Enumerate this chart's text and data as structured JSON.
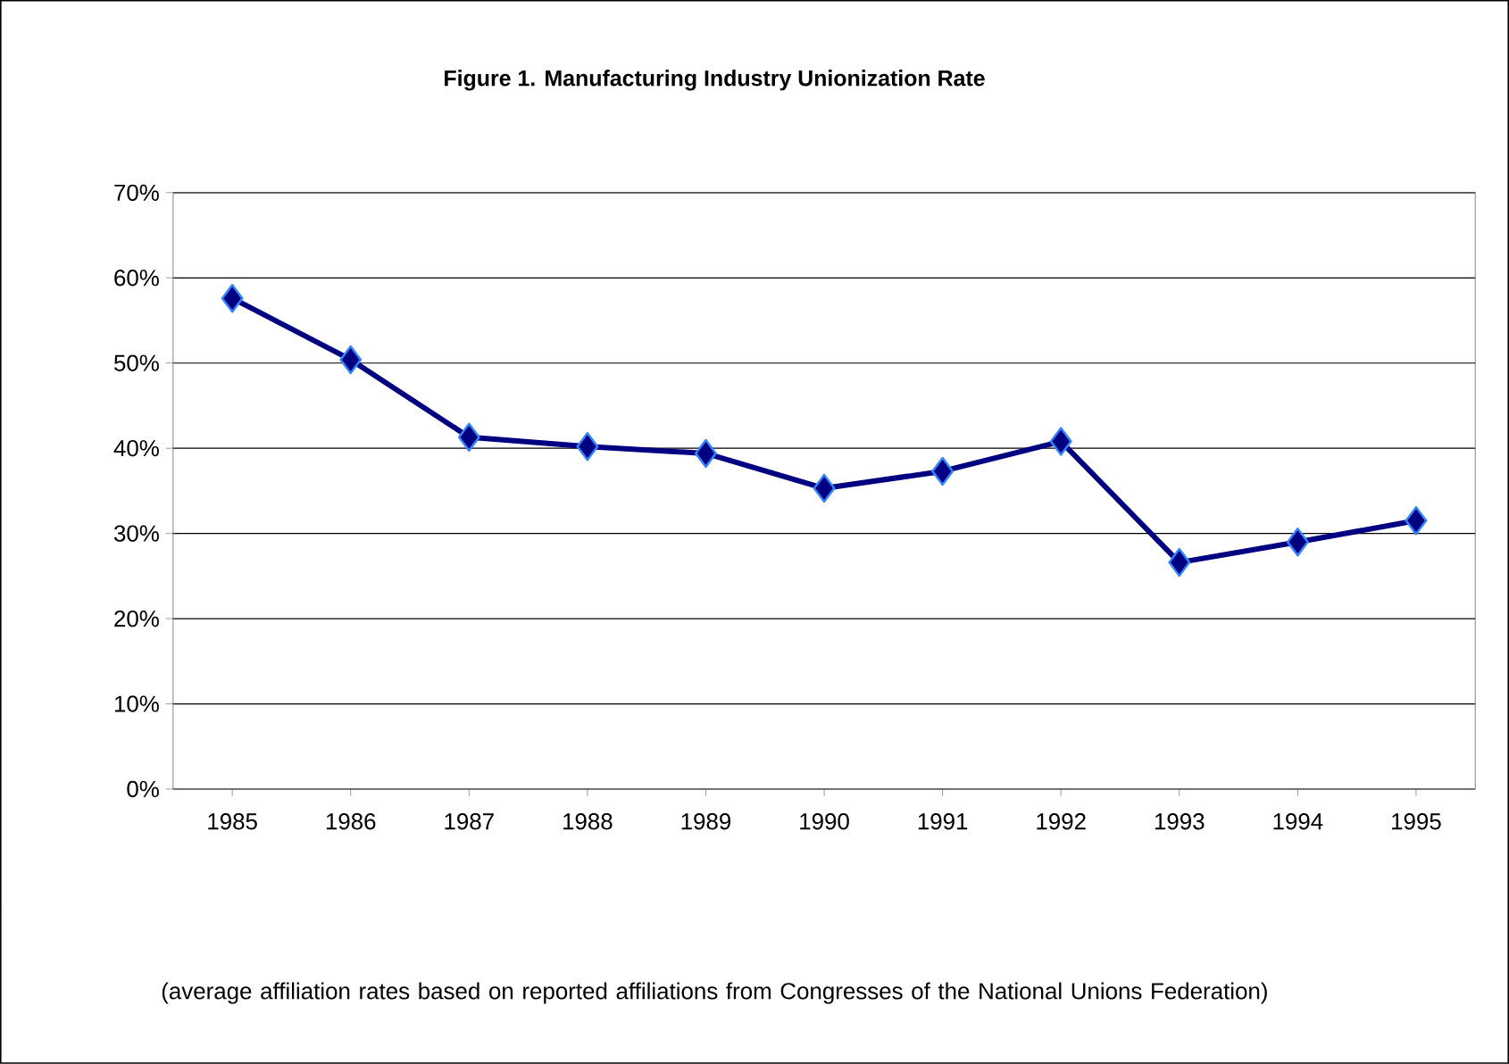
{
  "chart_data": {
    "type": "line",
    "title": "Figure 1. Manufacturing Industry Unionization Rate",
    "categories": [
      "1985",
      "1986",
      "1987",
      "1988",
      "1989",
      "1990",
      "1991",
      "1992",
      "1993",
      "1994",
      "1995"
    ],
    "series": [
      {
        "color": "#000080",
        "values": [
          57.6,
          50.4,
          41.3,
          40.2,
          39.4,
          35.3,
          37.3,
          40.8,
          26.6,
          29.0,
          31.5
        ]
      }
    ],
    "ylim": [
      0,
      70
    ],
    "yticks": [
      {
        "value": 0,
        "label": "0%"
      },
      {
        "value": 10,
        "label": "10%"
      },
      {
        "value": 20,
        "label": "20%"
      },
      {
        "value": 30,
        "label": "30%"
      },
      {
        "value": 40,
        "label": "40%"
      },
      {
        "value": 50,
        "label": "50%"
      },
      {
        "value": 60,
        "label": "60%"
      },
      {
        "value": 70,
        "label": "70%"
      }
    ],
    "grid": "y",
    "marker": "diamond",
    "line_style": "solid",
    "annotations": [
      "(average affiliation rates based on reported affiliations from Congresses of the National Unions Federation)"
    ]
  }
}
